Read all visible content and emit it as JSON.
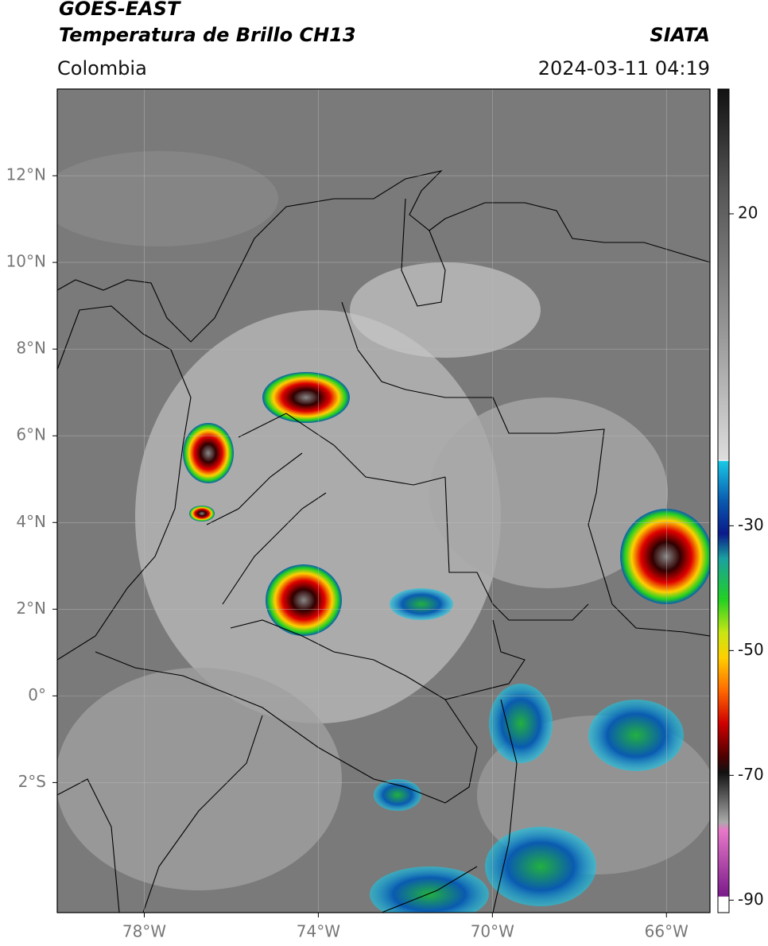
{
  "header": {
    "title": "GOES-EAST",
    "subtitle": "Temperatura de Brillo CH13",
    "source": "SIATA",
    "region": "Colombia",
    "datetime": "2024-03-11 04:19"
  },
  "map": {
    "xlim": [
      -80,
      -65
    ],
    "ylim": [
      -5,
      14
    ],
    "yticks": [
      {
        "value": 12,
        "label": "12°N"
      },
      {
        "value": 10,
        "label": "10°N"
      },
      {
        "value": 8,
        "label": "8°N"
      },
      {
        "value": 6,
        "label": "6°N"
      },
      {
        "value": 4,
        "label": "4°N"
      },
      {
        "value": 2,
        "label": "2°N"
      },
      {
        "value": 0,
        "label": "0°"
      },
      {
        "value": -2,
        "label": "2°S"
      }
    ],
    "xticks": [
      {
        "value": -78,
        "label": "78°W"
      },
      {
        "value": -74,
        "label": "74°W"
      },
      {
        "value": -70,
        "label": "70°W"
      },
      {
        "value": -66,
        "label": "66°W"
      }
    ],
    "grid": true
  },
  "colorbar": {
    "ylim": [
      -92,
      40
    ],
    "yticks": [
      20,
      -30,
      -50,
      -70,
      -90
    ]
  }
}
